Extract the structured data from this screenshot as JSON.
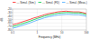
{
  "chart_data": {
    "type": "line",
    "xlabel": "Frequency (MHz)",
    "ylabel": "dB",
    "x": [
      0.1,
      0.15,
      0.2,
      0.3,
      0.5,
      0.7,
      1,
      1.5,
      2,
      3,
      5,
      7,
      10,
      15,
      20,
      30,
      50,
      70,
      100
    ],
    "series": [
      {
        "name": "--- Simul. (Sim.)",
        "color": "#ff2222",
        "values": [
          -65,
          -62,
          -59,
          -55,
          -50,
          -46,
          -43,
          -39,
          -36,
          -33,
          -30,
          -28,
          -27,
          -26,
          -27,
          -28,
          -28,
          -30,
          -33
        ]
      },
      {
        "name": "--- Simul. (FD)",
        "color": "#00cc44",
        "values": [
          -70,
          -67,
          -64,
          -60,
          -55,
          -51,
          -47,
          -43,
          -40,
          -37,
          -34,
          -32,
          -31,
          -30,
          -30,
          -31,
          -31,
          -33,
          -36
        ]
      },
      {
        "name": "--- Simul. (Meas.)",
        "color": "#44aaff",
        "values": [
          -75,
          -72,
          -69,
          -65,
          -60,
          -56,
          -52,
          -48,
          -45,
          -42,
          -39,
          -37,
          -36,
          -35,
          -35,
          -36,
          -36,
          -38,
          -41
        ]
      }
    ],
    "xlim": [
      0.1,
      100
    ],
    "ylim": [
      -80,
      -20
    ],
    "xticks": [
      0.1,
      1,
      10,
      100
    ],
    "yticks": [
      -80,
      -70,
      -60,
      -50,
      -40,
      -30,
      -20
    ],
    "log": "x",
    "grid": true,
    "legend": "top"
  }
}
